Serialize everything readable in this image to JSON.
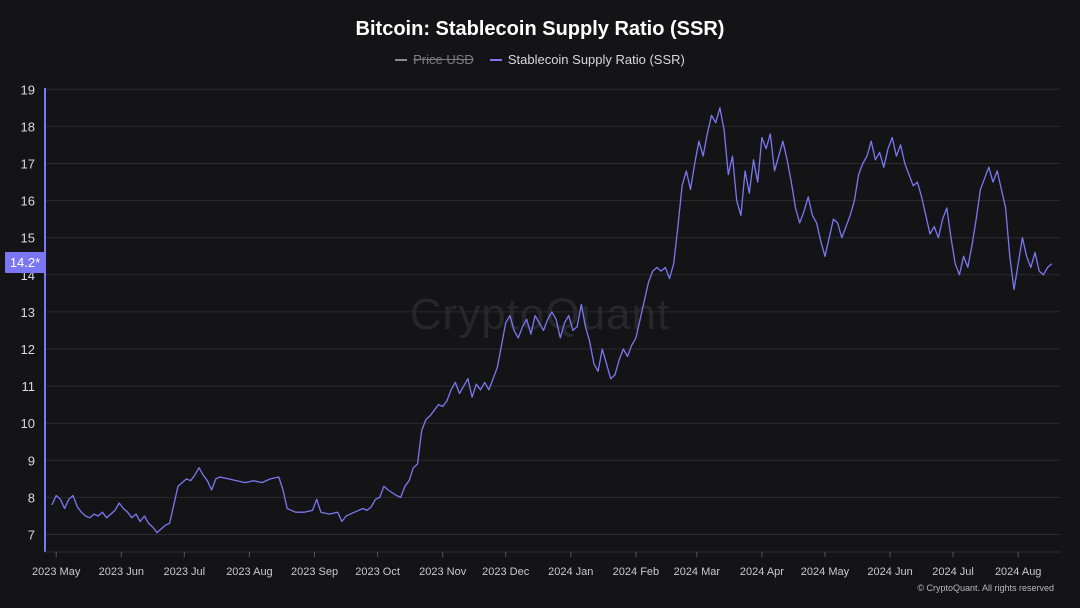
{
  "chart_data": {
    "type": "line",
    "title": "Bitcoin: Stablecoin Supply Ratio (SSR)",
    "legend": [
      {
        "name": "Price USD",
        "color": "#8a8a90",
        "visible": false
      },
      {
        "name": "Stablecoin Supply Ratio (SSR)",
        "color": "#7b77f2",
        "visible": true
      }
    ],
    "ylim": [
      6.6,
      19
    ],
    "yticks": [
      7,
      8,
      9,
      10,
      11,
      12,
      13,
      14,
      15,
      16,
      17,
      18,
      19
    ],
    "x_range_days": [
      0,
      478
    ],
    "xticks": [
      {
        "label": "2023 May",
        "day": 2
      },
      {
        "label": "2023 Jun",
        "day": 33
      },
      {
        "label": "2023 Jul",
        "day": 63
      },
      {
        "label": "2023 Aug",
        "day": 94
      },
      {
        "label": "2023 Sep",
        "day": 125
      },
      {
        "label": "2023 Oct",
        "day": 155
      },
      {
        "label": "2023 Nov",
        "day": 186
      },
      {
        "label": "2023 Dec",
        "day": 216
      },
      {
        "label": "2024 Jan",
        "day": 247
      },
      {
        "label": "2024 Feb",
        "day": 278
      },
      {
        "label": "2024 Mar",
        "day": 307
      },
      {
        "label": "2024 Apr",
        "day": 338
      },
      {
        "label": "2024 May",
        "day": 368
      },
      {
        "label": "2024 Jun",
        "day": 399
      },
      {
        "label": "2024 Jul",
        "day": 429
      },
      {
        "label": "2024 Aug",
        "day": 460
      }
    ],
    "series": [
      {
        "name": "Stablecoin Supply Ratio (SSR)",
        "color": "#7b77f2",
        "points": [
          [
            0,
            7.8
          ],
          [
            2,
            8.05
          ],
          [
            4,
            7.95
          ],
          [
            6,
            7.7
          ],
          [
            8,
            7.95
          ],
          [
            10,
            8.05
          ],
          [
            12,
            7.75
          ],
          [
            14,
            7.6
          ],
          [
            16,
            7.5
          ],
          [
            18,
            7.45
          ],
          [
            20,
            7.55
          ],
          [
            22,
            7.5
          ],
          [
            24,
            7.6
          ],
          [
            26,
            7.45
          ],
          [
            28,
            7.55
          ],
          [
            30,
            7.65
          ],
          [
            32,
            7.85
          ],
          [
            34,
            7.7
          ],
          [
            36,
            7.6
          ],
          [
            38,
            7.45
          ],
          [
            40,
            7.55
          ],
          [
            42,
            7.35
          ],
          [
            44,
            7.5
          ],
          [
            46,
            7.3
          ],
          [
            48,
            7.2
          ],
          [
            50,
            7.05
          ],
          [
            52,
            7.15
          ],
          [
            54,
            7.25
          ],
          [
            56,
            7.3
          ],
          [
            58,
            7.8
          ],
          [
            60,
            8.3
          ],
          [
            62,
            8.4
          ],
          [
            64,
            8.5
          ],
          [
            66,
            8.45
          ],
          [
            68,
            8.6
          ],
          [
            70,
            8.8
          ],
          [
            72,
            8.6
          ],
          [
            74,
            8.45
          ],
          [
            76,
            8.2
          ],
          [
            78,
            8.5
          ],
          [
            80,
            8.55
          ],
          [
            84,
            8.5
          ],
          [
            88,
            8.45
          ],
          [
            92,
            8.4
          ],
          [
            96,
            8.45
          ],
          [
            100,
            8.4
          ],
          [
            104,
            8.5
          ],
          [
            108,
            8.55
          ],
          [
            110,
            8.2
          ],
          [
            112,
            7.7
          ],
          [
            116,
            7.6
          ],
          [
            120,
            7.6
          ],
          [
            124,
            7.65
          ],
          [
            126,
            7.95
          ],
          [
            128,
            7.6
          ],
          [
            132,
            7.55
          ],
          [
            136,
            7.6
          ],
          [
            138,
            7.35
          ],
          [
            140,
            7.5
          ],
          [
            144,
            7.6
          ],
          [
            148,
            7.7
          ],
          [
            150,
            7.65
          ],
          [
            152,
            7.75
          ],
          [
            154,
            7.95
          ],
          [
            156,
            8.0
          ],
          [
            158,
            8.3
          ],
          [
            160,
            8.2
          ],
          [
            164,
            8.05
          ],
          [
            166,
            8.0
          ],
          [
            168,
            8.3
          ],
          [
            170,
            8.45
          ],
          [
            172,
            8.8
          ],
          [
            174,
            8.9
          ],
          [
            176,
            9.8
          ],
          [
            178,
            10.1
          ],
          [
            180,
            10.2
          ],
          [
            182,
            10.35
          ],
          [
            184,
            10.5
          ],
          [
            186,
            10.45
          ],
          [
            188,
            10.6
          ],
          [
            190,
            10.9
          ],
          [
            192,
            11.1
          ],
          [
            194,
            10.8
          ],
          [
            196,
            11.0
          ],
          [
            198,
            11.2
          ],
          [
            200,
            10.7
          ],
          [
            202,
            11.05
          ],
          [
            204,
            10.9
          ],
          [
            206,
            11.1
          ],
          [
            208,
            10.9
          ],
          [
            210,
            11.2
          ],
          [
            212,
            11.5
          ],
          [
            214,
            12.1
          ],
          [
            216,
            12.7
          ],
          [
            218,
            12.9
          ],
          [
            220,
            12.5
          ],
          [
            222,
            12.3
          ],
          [
            224,
            12.6
          ],
          [
            226,
            12.8
          ],
          [
            228,
            12.4
          ],
          [
            230,
            12.9
          ],
          [
            232,
            12.7
          ],
          [
            234,
            12.5
          ],
          [
            236,
            12.8
          ],
          [
            238,
            13.0
          ],
          [
            240,
            12.8
          ],
          [
            242,
            12.3
          ],
          [
            244,
            12.7
          ],
          [
            246,
            12.9
          ],
          [
            248,
            12.5
          ],
          [
            250,
            12.6
          ],
          [
            252,
            13.2
          ],
          [
            254,
            12.6
          ],
          [
            256,
            12.2
          ],
          [
            258,
            11.6
          ],
          [
            260,
            11.4
          ],
          [
            262,
            12.0
          ],
          [
            264,
            11.6
          ],
          [
            266,
            11.2
          ],
          [
            268,
            11.3
          ],
          [
            270,
            11.7
          ],
          [
            272,
            12.0
          ],
          [
            274,
            11.8
          ],
          [
            276,
            12.1
          ],
          [
            278,
            12.3
          ],
          [
            280,
            12.8
          ],
          [
            282,
            13.3
          ],
          [
            284,
            13.8
          ],
          [
            286,
            14.1
          ],
          [
            288,
            14.2
          ],
          [
            290,
            14.1
          ],
          [
            292,
            14.2
          ],
          [
            294,
            13.9
          ],
          [
            296,
            14.3
          ],
          [
            298,
            15.3
          ],
          [
            300,
            16.4
          ],
          [
            302,
            16.8
          ],
          [
            304,
            16.3
          ],
          [
            306,
            17.0
          ],
          [
            308,
            17.6
          ],
          [
            310,
            17.2
          ],
          [
            312,
            17.8
          ],
          [
            314,
            18.3
          ],
          [
            316,
            18.1
          ],
          [
            318,
            18.5
          ],
          [
            320,
            17.9
          ],
          [
            322,
            16.7
          ],
          [
            324,
            17.2
          ],
          [
            326,
            16.0
          ],
          [
            328,
            15.6
          ],
          [
            330,
            16.8
          ],
          [
            332,
            16.2
          ],
          [
            334,
            17.1
          ],
          [
            336,
            16.5
          ],
          [
            338,
            17.7
          ],
          [
            340,
            17.4
          ],
          [
            342,
            17.8
          ],
          [
            344,
            16.8
          ],
          [
            346,
            17.2
          ],
          [
            348,
            17.6
          ],
          [
            350,
            17.1
          ],
          [
            352,
            16.5
          ],
          [
            354,
            15.8
          ],
          [
            356,
            15.4
          ],
          [
            358,
            15.7
          ],
          [
            360,
            16.1
          ],
          [
            362,
            15.6
          ],
          [
            364,
            15.4
          ],
          [
            366,
            14.9
          ],
          [
            368,
            14.5
          ],
          [
            370,
            15.0
          ],
          [
            372,
            15.5
          ],
          [
            374,
            15.4
          ],
          [
            376,
            15.0
          ],
          [
            378,
            15.3
          ],
          [
            380,
            15.6
          ],
          [
            382,
            16.0
          ],
          [
            384,
            16.7
          ],
          [
            386,
            17.0
          ],
          [
            388,
            17.2
          ],
          [
            390,
            17.6
          ],
          [
            392,
            17.1
          ],
          [
            394,
            17.3
          ],
          [
            396,
            16.9
          ],
          [
            398,
            17.4
          ],
          [
            400,
            17.7
          ],
          [
            402,
            17.2
          ],
          [
            404,
            17.5
          ],
          [
            406,
            17.0
          ],
          [
            408,
            16.7
          ],
          [
            410,
            16.4
          ],
          [
            412,
            16.5
          ],
          [
            414,
            16.1
          ],
          [
            416,
            15.6
          ],
          [
            418,
            15.1
          ],
          [
            420,
            15.3
          ],
          [
            422,
            15.0
          ],
          [
            424,
            15.5
          ],
          [
            426,
            15.8
          ],
          [
            428,
            15.0
          ],
          [
            430,
            14.3
          ],
          [
            432,
            14.0
          ],
          [
            434,
            14.5
          ],
          [
            436,
            14.2
          ],
          [
            438,
            14.8
          ],
          [
            440,
            15.5
          ],
          [
            442,
            16.3
          ],
          [
            444,
            16.6
          ],
          [
            446,
            16.9
          ],
          [
            448,
            16.5
          ],
          [
            450,
            16.8
          ],
          [
            452,
            16.3
          ],
          [
            454,
            15.8
          ],
          [
            456,
            14.5
          ],
          [
            458,
            13.6
          ],
          [
            460,
            14.3
          ],
          [
            462,
            15.0
          ],
          [
            464,
            14.5
          ],
          [
            466,
            14.2
          ],
          [
            468,
            14.6
          ],
          [
            470,
            14.1
          ],
          [
            472,
            14.0
          ],
          [
            474,
            14.2
          ],
          [
            476,
            14.3
          ]
        ]
      }
    ]
  },
  "value_badge": "14.2*",
  "watermark": "CryptoQuant",
  "credit": "© CryptoQuant. All rights reserved"
}
